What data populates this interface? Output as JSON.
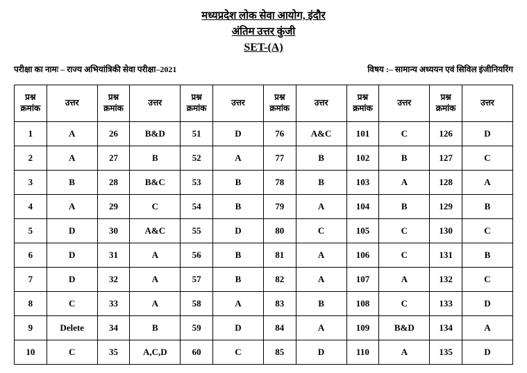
{
  "header": {
    "org": "मध्यप्रदेश लोक सेवा आयोग, इंदौर",
    "doc": "अंतिम उत्तर कुंजी",
    "set": "SET-(A)"
  },
  "meta": {
    "left": "परीक्षा का नामः – राज्य अभियांत्रिकी सेवा परीक्षा–2021",
    "right": "विषय :– सामान्य अध्ययन एवं सिविल इंजीनियरिंग"
  },
  "table": {
    "header_q": "प्रश्न क्रमांक",
    "header_a": "उत्तर",
    "column_widths": {
      "q": "6.4%",
      "a": "10.26%"
    },
    "font": {
      "header_size": 12,
      "cell_size": 13,
      "cell_weight": "bold"
    },
    "border_color": "#000000",
    "background_color": "#ffffff",
    "columns": 12,
    "start_numbers": [
      1,
      26,
      51,
      76,
      101,
      126
    ],
    "rows": [
      [
        "A",
        "B&D",
        "D",
        "A&C",
        "C",
        "D"
      ],
      [
        "A",
        "B",
        "A",
        "B",
        "B",
        "C"
      ],
      [
        "B",
        "B&C",
        "B",
        "B",
        "A",
        "A"
      ],
      [
        "A",
        "C",
        "B",
        "A",
        "B",
        "B"
      ],
      [
        "D",
        "A&C",
        "D",
        "C",
        "C",
        "C"
      ],
      [
        "D",
        "A",
        "B",
        "A",
        "C",
        "B"
      ],
      [
        "D",
        "A",
        "B",
        "A",
        "A",
        "C"
      ],
      [
        "C",
        "A",
        "A",
        "B",
        "C",
        "D"
      ],
      [
        "Delete",
        "B",
        "D",
        "A",
        "B&D",
        "A"
      ],
      [
        "C",
        "A,C,D",
        "C",
        "D",
        "A",
        "D"
      ]
    ]
  }
}
